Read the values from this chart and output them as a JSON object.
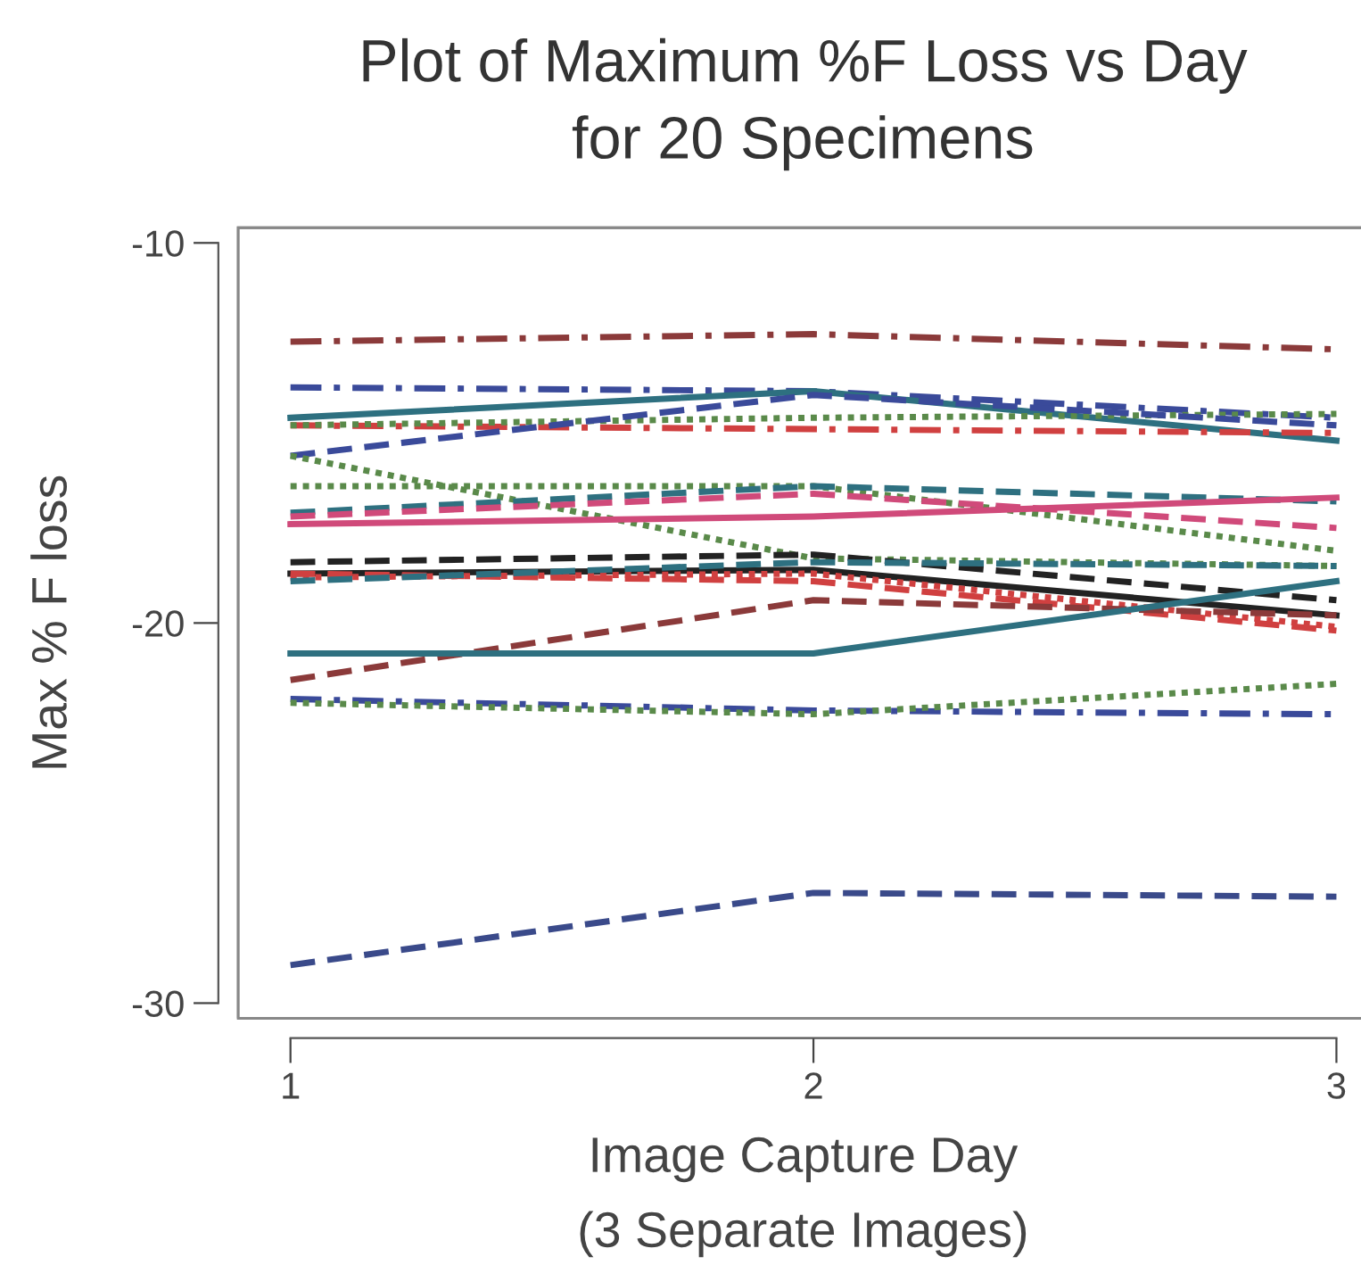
{
  "chart_data": {
    "type": "line",
    "title": "Plot of Maximum %F Loss vs Day\nfor 20 Specimens",
    "xlabel": "Image Capture Day\n(3 Separate Images)",
    "ylabel": "Max % F loss",
    "x": [
      1,
      2,
      3
    ],
    "xlim": [
      0.9,
      3.06
    ],
    "xticks": [
      1,
      2,
      3
    ],
    "ylim": [
      -30.4,
      -9.6
    ],
    "yticks": [
      -30,
      -20,
      -10
    ],
    "grid": false,
    "marker": "none",
    "series": [
      {
        "color": "#8b3a3a",
        "line_style": "dashdot",
        "values": [
          -12.6,
          -12.4,
          -12.8
        ]
      },
      {
        "color": "#3a4a9a",
        "line_style": "dashdot",
        "values": [
          -13.8,
          -13.9,
          -14.6
        ]
      },
      {
        "color": "#2e7080",
        "line_style": "solid",
        "values": [
          -14.6,
          -13.9,
          -15.2
        ]
      },
      {
        "color": "#d04040",
        "line_style": "dashdot",
        "values": [
          -14.8,
          -14.9,
          -15.0
        ]
      },
      {
        "color": "#5a8a4a",
        "line_style": "dotted",
        "values": [
          -14.8,
          -14.6,
          -14.5
        ]
      },
      {
        "color": "#3a4a9a",
        "line_style": "dashed",
        "values": [
          -15.6,
          -14.0,
          -14.8
        ]
      },
      {
        "color": "#5a8a4a",
        "line_style": "dotted",
        "values": [
          -15.6,
          -18.3,
          -18.5
        ]
      },
      {
        "color": "#5a8a4a",
        "line_style": "dotted",
        "values": [
          -16.4,
          -16.4,
          -18.1
        ]
      },
      {
        "color": "#2e7080",
        "line_style": "dashed",
        "values": [
          -17.1,
          -16.4,
          -16.8
        ]
      },
      {
        "color": "#d04a7a",
        "line_style": "dashed",
        "values": [
          -17.2,
          -16.6,
          -17.5
        ]
      },
      {
        "color": "#d04a7a",
        "line_style": "solid",
        "values": [
          -17.4,
          -17.2,
          -16.7
        ]
      },
      {
        "color": "#222222",
        "line_style": "dashed",
        "values": [
          -18.4,
          -18.2,
          -19.4
        ]
      },
      {
        "color": "#222222",
        "line_style": "solid",
        "values": [
          -18.7,
          -18.6,
          -19.8
        ]
      },
      {
        "color": "#d04040",
        "line_style": "dotted",
        "values": [
          -18.8,
          -18.7,
          -20.1
        ]
      },
      {
        "color": "#d04040",
        "line_style": "dashed",
        "values": [
          -18.7,
          -18.9,
          -20.2
        ]
      },
      {
        "color": "#2e7080",
        "line_style": "dashed",
        "values": [
          -18.9,
          -18.4,
          -18.5
        ]
      },
      {
        "color": "#8b3a3a",
        "line_style": "dashed",
        "values": [
          -21.5,
          -19.4,
          -19.8
        ]
      },
      {
        "color": "#2e7080",
        "line_style": "solid",
        "values": [
          -20.8,
          -20.8,
          -18.9
        ]
      },
      {
        "color": "#3a4a9a",
        "line_style": "dashdot",
        "values": [
          -22.0,
          -22.3,
          -22.4
        ]
      },
      {
        "color": "#5a8a4a",
        "line_style": "dotted",
        "values": [
          -22.1,
          -22.4,
          -21.6
        ]
      },
      {
        "color": "#3a4a8a",
        "line_style": "dashed",
        "values": [
          -29.0,
          -27.1,
          -27.2
        ]
      }
    ]
  }
}
